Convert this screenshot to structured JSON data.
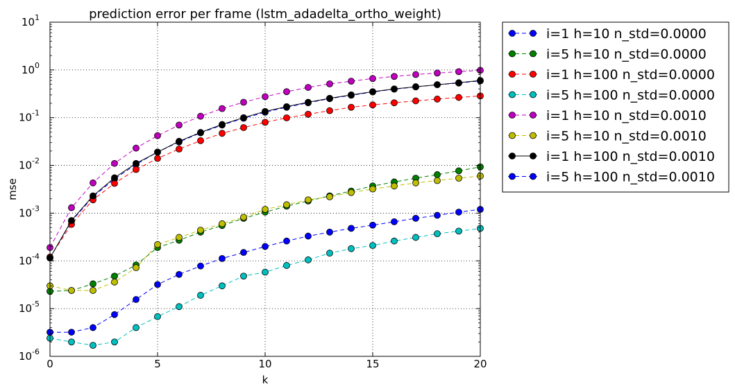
{
  "chart_data": {
    "type": "line",
    "title": "prediction error per frame (lstm_adadelta_ortho_weight)",
    "xlabel": "k",
    "ylabel": "mse",
    "xlim": [
      0,
      20
    ],
    "ylim": [
      1e-06,
      10
    ],
    "yscale": "log",
    "grid": true,
    "legend_position": "outside right",
    "x_ticks": [
      "0",
      "5",
      "10",
      "15",
      "20"
    ],
    "y_ticks": [
      {
        "base": "10",
        "exp": "-6"
      },
      {
        "base": "10",
        "exp": "-5"
      },
      {
        "base": "10",
        "exp": "-4"
      },
      {
        "base": "10",
        "exp": "-3"
      },
      {
        "base": "10",
        "exp": "-2"
      },
      {
        "base": "10",
        "exp": "-1"
      },
      {
        "base": "10",
        "exp": "0"
      },
      {
        "base": "10",
        "exp": "1"
      }
    ],
    "x": [
      0,
      1,
      2,
      3,
      4,
      5,
      6,
      7,
      8,
      9,
      10,
      11,
      12,
      13,
      14,
      15,
      16,
      17,
      18,
      19,
      20
    ],
    "series": [
      {
        "name": "i=1 h=10 n_std=0.0000",
        "color": "#0000ff",
        "linestyle": "dashed",
        "values": [
          0.000115,
          0.00068,
          0.0022,
          0.0052,
          0.0105,
          0.019,
          0.031,
          0.048,
          0.07,
          0.097,
          0.13,
          0.165,
          0.205,
          0.25,
          0.295,
          0.345,
          0.395,
          0.44,
          0.49,
          0.53,
          0.59
        ]
      },
      {
        "name": "i=5 h=10 n_std=0.0000",
        "color": "#008000",
        "linestyle": "dashed",
        "values": [
          2.3e-05,
          2.4e-05,
          3.3e-05,
          4.8e-05,
          8.2e-05,
          0.00019,
          0.00027,
          0.0004,
          0.00055,
          0.00078,
          0.00105,
          0.0014,
          0.0018,
          0.0023,
          0.0029,
          0.0037,
          0.0045,
          0.0054,
          0.0064,
          0.0077,
          0.0093
        ]
      },
      {
        "name": "i=1 h=100 n_std=0.0000",
        "color": "#ff0000",
        "linestyle": "dashed",
        "values": [
          0.00012,
          0.00058,
          0.0019,
          0.0042,
          0.0082,
          0.014,
          0.022,
          0.033,
          0.047,
          0.062,
          0.08,
          0.099,
          0.118,
          0.14,
          0.165,
          0.185,
          0.205,
          0.225,
          0.245,
          0.265,
          0.285
        ]
      },
      {
        "name": "i=5 h=100 n_std=0.0000",
        "color": "#00bfbf",
        "linestyle": "dashed",
        "values": [
          2.4e-06,
          2e-06,
          1.7e-06,
          2e-06,
          4e-06,
          6.8e-06,
          1.1e-05,
          1.9e-05,
          3e-05,
          4.8e-05,
          5.8e-05,
          8e-05,
          0.000105,
          0.000145,
          0.00018,
          0.00021,
          0.00026,
          0.00031,
          0.00037,
          0.00042,
          0.00048
        ]
      },
      {
        "name": "i=1 h=10 n_std=0.0010",
        "color": "#bf00bf",
        "linestyle": "dashed",
        "values": [
          0.00019,
          0.0013,
          0.0043,
          0.011,
          0.023,
          0.042,
          0.07,
          0.107,
          0.155,
          0.21,
          0.275,
          0.35,
          0.43,
          0.51,
          0.58,
          0.66,
          0.73,
          0.8,
          0.86,
          0.92,
          0.98
        ]
      },
      {
        "name": "i=5 h=10 n_std=0.0010",
        "color": "#bfbf00",
        "linestyle": "dashed",
        "values": [
          3e-05,
          2.4e-05,
          2.4e-05,
          3.6e-05,
          7.2e-05,
          0.00022,
          0.00031,
          0.00044,
          0.0006,
          0.00082,
          0.0012,
          0.0015,
          0.0019,
          0.0022,
          0.0027,
          0.0032,
          0.0037,
          0.0043,
          0.0048,
          0.0054,
          0.006
        ]
      },
      {
        "name": "i=1 h=100 n_std=0.0010",
        "color": "#000000",
        "linestyle": "solid",
        "values": [
          0.000115,
          0.0007,
          0.0023,
          0.0055,
          0.011,
          0.019,
          0.032,
          0.049,
          0.072,
          0.1,
          0.135,
          0.17,
          0.21,
          0.255,
          0.3,
          0.35,
          0.4,
          0.445,
          0.49,
          0.54,
          0.6
        ]
      },
      {
        "name": "i=5 h=100 n_std=0.0010",
        "color": "#0000ff",
        "linestyle": "dashed",
        "values": [
          3.2e-06,
          3.2e-06,
          4e-06,
          7.5e-06,
          1.55e-05,
          3.2e-05,
          5.2e-05,
          7.8e-05,
          0.000112,
          0.00015,
          0.0002,
          0.00026,
          0.00033,
          0.0004,
          0.00048,
          0.00056,
          0.00066,
          0.00078,
          0.0009,
          0.00105,
          0.0012
        ]
      }
    ]
  }
}
